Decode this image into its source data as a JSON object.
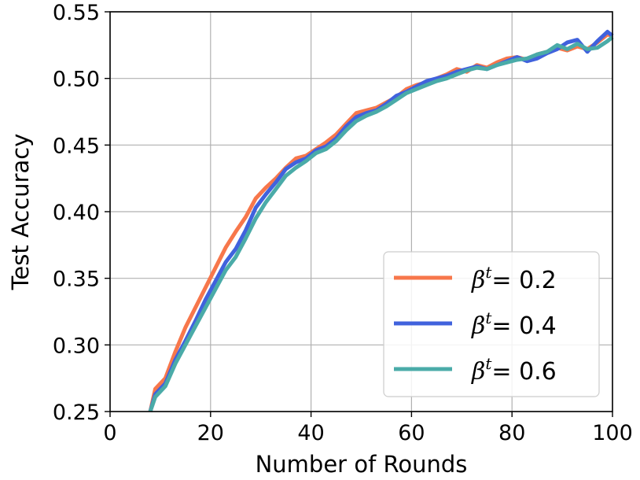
{
  "chart_data": {
    "type": "line",
    "title": "",
    "xlabel": "Number of Rounds",
    "ylabel": "Test Accuracy",
    "xlim": [
      0,
      100
    ],
    "ylim": [
      0.25,
      0.55
    ],
    "xticks": [
      "0",
      "20",
      "40",
      "60",
      "80",
      "100"
    ],
    "yticks": [
      "0.25",
      "0.30",
      "0.35",
      "0.40",
      "0.45",
      "0.50",
      "0.55"
    ],
    "grid": true,
    "legend_position": "bottom-right",
    "x": [
      8,
      9,
      11,
      13,
      15,
      17,
      19,
      21,
      23,
      25,
      27,
      29,
      31,
      33,
      35,
      37,
      39,
      41,
      43,
      45,
      47,
      49,
      51,
      53,
      55,
      57,
      59,
      61,
      63,
      65,
      67,
      69,
      71,
      73,
      75,
      77,
      79,
      81,
      83,
      85,
      87,
      89,
      91,
      93,
      95,
      97,
      99,
      100
    ],
    "series": [
      {
        "name": "β^t = 0.2",
        "legend_label": "= 0.2",
        "color": "#f7774b",
        "values": [
          0.25,
          0.267,
          0.275,
          0.295,
          0.313,
          0.328,
          0.343,
          0.358,
          0.373,
          0.385,
          0.396,
          0.41,
          0.418,
          0.425,
          0.433,
          0.44,
          0.442,
          0.447,
          0.452,
          0.458,
          0.466,
          0.474,
          0.476,
          0.478,
          0.482,
          0.486,
          0.492,
          0.495,
          0.497,
          0.5,
          0.503,
          0.507,
          0.505,
          0.51,
          0.508,
          0.512,
          0.515,
          0.516,
          0.514,
          0.518,
          0.52,
          0.523,
          0.521,
          0.524,
          0.522,
          0.527,
          0.533,
          0.532
        ]
      },
      {
        "name": "β^t = 0.4",
        "legend_label": "= 0.4",
        "color": "#4062dd",
        "values": [
          0.25,
          0.263,
          0.271,
          0.289,
          0.303,
          0.318,
          0.334,
          0.348,
          0.362,
          0.372,
          0.386,
          0.403,
          0.413,
          0.422,
          0.432,
          0.437,
          0.44,
          0.446,
          0.449,
          0.455,
          0.464,
          0.471,
          0.474,
          0.476,
          0.481,
          0.487,
          0.49,
          0.494,
          0.498,
          0.5,
          0.502,
          0.505,
          0.507,
          0.509,
          0.507,
          0.51,
          0.513,
          0.516,
          0.513,
          0.515,
          0.519,
          0.522,
          0.527,
          0.529,
          0.52,
          0.528,
          0.535,
          0.532
        ]
      },
      {
        "name": "β^t = 0.6",
        "legend_label": "= 0.6",
        "color": "#4aaba8",
        "values": [
          0.25,
          0.261,
          0.269,
          0.286,
          0.3,
          0.314,
          0.328,
          0.342,
          0.356,
          0.366,
          0.38,
          0.395,
          0.407,
          0.417,
          0.427,
          0.433,
          0.438,
          0.444,
          0.447,
          0.453,
          0.461,
          0.468,
          0.472,
          0.475,
          0.479,
          0.484,
          0.489,
          0.492,
          0.495,
          0.498,
          0.5,
          0.503,
          0.506,
          0.508,
          0.507,
          0.51,
          0.512,
          0.514,
          0.515,
          0.518,
          0.52,
          0.525,
          0.522,
          0.526,
          0.522,
          0.523,
          0.528,
          0.531
        ]
      }
    ]
  }
}
